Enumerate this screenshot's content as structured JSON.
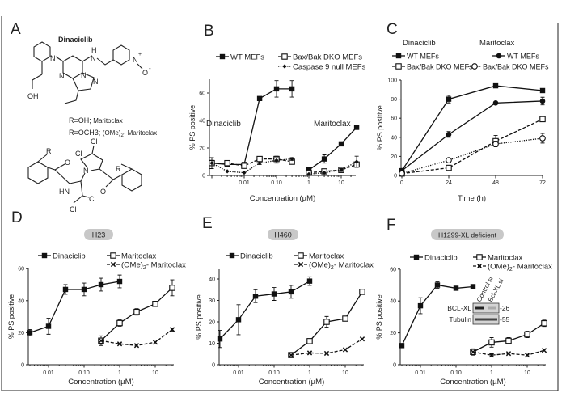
{
  "panel_letters": {
    "a": "A",
    "b": "B",
    "c": "C",
    "d": "D",
    "e": "E",
    "f": "F"
  },
  "panel_a": {
    "compound_name": "Dinaciclib",
    "r_oh": {
      "text": "R=OH;",
      "name": "Maritoclax"
    },
    "r_och3": {
      "text": "R=OCH3;",
      "name_parts": [
        "(OMe)",
        "2",
        "- Maritoclax"
      ]
    },
    "atoms": {
      "n1": "N",
      "oh": "OH",
      "n2": "N",
      "n3": "N",
      "n4": "N",
      "nh_n": "N",
      "nh_h": "H",
      "n_plus": "N",
      "plus": "+",
      "o_minus": "O",
      "minus": "-",
      "cl1": "Cl",
      "cl2": "Cl",
      "cl3": "Cl",
      "cl4": "Cl",
      "n5": "N",
      "hn": "HN",
      "r1": "R",
      "r2": "R",
      "o1": "O",
      "o2": "O"
    }
  },
  "panel_b_labels": {
    "dinaciclib": "Dinaciclib",
    "maritoclax": "Maritoclax"
  },
  "panel_c_groups": {
    "dinaciclib": "Dinaciclib",
    "maritoclax": "Maritoclax"
  },
  "cell_lines": {
    "d": "H23",
    "e": "H460",
    "f": "H1299-XL deficient"
  },
  "western_blot": {
    "lanes": [
      "Control si",
      "Bcl-XL si"
    ],
    "rows": [
      {
        "label": "BCL-XL",
        "mw": "-26"
      },
      {
        "label": "Tubulin",
        "mw": "-55"
      }
    ],
    "bcl_xl_band_intensity": [
      1.0,
      0.1
    ],
    "tubulin_band_intensity": [
      1.0,
      1.0
    ]
  },
  "chart_data": [
    {
      "panel": "B",
      "type": "line",
      "xscale": "log",
      "xlabel": "Concentration (µM)",
      "ylabel": "% PS positive",
      "x_ticks": [
        0.01,
        0.1,
        1,
        10
      ],
      "x_tick_labels": [
        "0.01",
        "0.10",
        "1",
        "10"
      ],
      "y_ticks": [
        0,
        20,
        40,
        60
      ],
      "ylim": [
        0,
        70
      ],
      "legend": "top",
      "series": [
        {
          "name": "WT MEFs",
          "marker": "square-filled",
          "line": "solid",
          "segments": [
            {
              "x": [
                0.001,
                0.003,
                0.01,
                0.03,
                0.1,
                0.3
              ],
              "y": [
                9,
                8,
                8,
                56,
                63,
                63
              ],
              "err": [
                4,
                1,
                1,
                1,
                6,
                6
              ]
            },
            {
              "x": [
                1,
                3,
                10,
                30
              ],
              "y": [
                4,
                12,
                23,
                35
              ],
              "err": [
                0,
                3,
                0,
                0
              ]
            }
          ]
        },
        {
          "name": "Bax/Bak DKO MEFs",
          "marker": "square-open",
          "line": "dashed",
          "segments": [
            {
              "x": [
                0.001,
                0.003,
                0.01,
                0.03,
                0.1,
                0.3
              ],
              "y": [
                9,
                9,
                7,
                12,
                12,
                10
              ],
              "err": [
                2,
                1,
                1,
                1,
                2,
                1
              ]
            },
            {
              "x": [
                1,
                3,
                10,
                30
              ],
              "y": [
                2,
                3,
                4,
                8
              ],
              "err": [
                0,
                1,
                1,
                2
              ]
            }
          ]
        },
        {
          "name": "Caspase 9 null MEFs",
          "marker": "diamond-filled",
          "line": "dotted",
          "segments": [
            {
              "x": [
                0.001,
                0.003,
                0.01,
                0.03,
                0.1,
                0.3
              ],
              "y": [
                9,
                3,
                2,
                9,
                11,
                12
              ],
              "err": [
                2,
                0,
                0,
                1,
                2,
                1
              ]
            },
            {
              "x": [
                1,
                3,
                10,
                30
              ],
              "y": [
                1,
                2,
                4,
                10
              ],
              "err": [
                0,
                0,
                1,
                4
              ]
            }
          ]
        }
      ]
    },
    {
      "panel": "C",
      "type": "line",
      "xscale": "linear",
      "xlabel": "Time (h)",
      "ylabel": "% PS positive",
      "x_ticks": [
        0,
        24,
        48,
        72
      ],
      "x_tick_labels": [
        "0",
        "24",
        "48",
        "72"
      ],
      "y_ticks": [
        0,
        20,
        40,
        60,
        80,
        100
      ],
      "ylim": [
        0,
        100
      ],
      "legend": "top",
      "series": [
        {
          "group": "Dinaciclib",
          "name": "WT MEFs",
          "marker": "square-filled",
          "line": "solid",
          "segments": [
            {
              "x": [
                0,
                24,
                48,
                72
              ],
              "y": [
                5,
                80,
                94,
                89
              ],
              "err": [
                0,
                4,
                2,
                2
              ]
            }
          ]
        },
        {
          "group": "Dinaciclib",
          "name": "Bax/Bak DKO MEFs",
          "marker": "square-open",
          "line": "dashed",
          "segments": [
            {
              "x": [
                0,
                24,
                48,
                72
              ],
              "y": [
                2,
                8,
                36,
                59
              ],
              "err": [
                0,
                2,
                6,
                2
              ]
            }
          ]
        },
        {
          "group": "Maritoclax",
          "name": "WT MEFs",
          "marker": "circle-filled",
          "line": "solid",
          "segments": [
            {
              "x": [
                0,
                24,
                48,
                72
              ],
              "y": [
                5,
                43,
                76,
                78
              ],
              "err": [
                0,
                3,
                1,
                4
              ]
            }
          ]
        },
        {
          "group": "Maritoclax",
          "name": "Bax/Bak DKO MEFs",
          "marker": "circle-open",
          "line": "dotted",
          "segments": [
            {
              "x": [
                0,
                24,
                48,
                72
              ],
              "y": [
                2,
                16,
                33,
                39
              ],
              "err": [
                0,
                2,
                3,
                5
              ]
            }
          ]
        }
      ]
    },
    {
      "panel": "D",
      "type": "line",
      "xscale": "log",
      "xlabel": "Concentration (µM)",
      "ylabel": "% PS positive",
      "x_ticks": [
        0.01,
        0.1,
        1,
        10
      ],
      "x_tick_labels": [
        "0.01",
        "0.10",
        "1",
        "10"
      ],
      "y_ticks": [
        0,
        20,
        40,
        60
      ],
      "ylim": [
        0,
        60
      ],
      "legend": "top",
      "series": [
        {
          "name_parts": [
            "Dinaciclib"
          ],
          "marker": "square-filled",
          "line": "solid",
          "segments": [
            {
              "x": [
                0.003,
                0.01,
                0.03,
                0.1,
                0.3,
                1
              ],
              "y": [
                20,
                24,
                47,
                47,
                50,
                52
              ],
              "err": [
                2,
                5,
                3,
                4,
                4,
                4
              ]
            }
          ]
        },
        {
          "name_parts": [
            "Maritoclax"
          ],
          "marker": "square-open",
          "line": "solid",
          "segments": [
            {
              "x": [
                0.3,
                1,
                3,
                10,
                30
              ],
              "y": [
                15,
                26,
                33,
                38,
                48
              ],
              "err": [
                3,
                2,
                2,
                1,
                5
              ]
            }
          ]
        },
        {
          "name_parts": [
            "(OMe)",
            "2",
            "- Maritoclax"
          ],
          "marker": "x",
          "line": "dashed",
          "segments": [
            {
              "x": [
                0.3,
                1,
                3,
                10,
                30
              ],
              "y": [
                15,
                13,
                12,
                14,
                22
              ],
              "err": [
                0,
                0,
                0,
                0,
                1
              ]
            }
          ]
        }
      ]
    },
    {
      "panel": "E",
      "type": "line",
      "xscale": "log",
      "xlabel": "Concentration (µM)",
      "ylabel": "% PS positive",
      "x_ticks": [
        0.01,
        0.1,
        1,
        10
      ],
      "x_tick_labels": [
        "0.01",
        "0.10",
        "1",
        "10"
      ],
      "y_ticks": [
        0,
        10,
        20,
        30,
        40
      ],
      "ylim": [
        0,
        45
      ],
      "legend": "top",
      "series": [
        {
          "name_parts": [
            "Dinaciclib"
          ],
          "marker": "square-filled",
          "line": "solid",
          "segments": [
            {
              "x": [
                0.003,
                0.01,
                0.03,
                0.1,
                0.3,
                1
              ],
              "y": [
                12,
                21,
                32,
                33,
                34,
                39
              ],
              "err": [
                4,
                7,
                3,
                3,
                3,
                2
              ]
            }
          ]
        },
        {
          "name_parts": [
            "Maritoclax"
          ],
          "marker": "square-open",
          "line": "solid",
          "segments": [
            {
              "x": [
                0.3,
                1,
                3,
                10,
                30
              ],
              "y": [
                4.5,
                11,
                20,
                21.5,
                34
              ],
              "err": [
                0,
                1,
                2.5,
                1,
                1
              ]
            }
          ]
        },
        {
          "name_parts": [
            "(OMe)",
            "2",
            "- Maritoclax"
          ],
          "marker": "x",
          "line": "dashed",
          "segments": [
            {
              "x": [
                0.3,
                1,
                3,
                10,
                30
              ],
              "y": [
                4.5,
                5.5,
                5.3,
                7,
                12
              ],
              "err": [
                0,
                0,
                0,
                0,
                0
              ]
            }
          ]
        }
      ]
    },
    {
      "panel": "F",
      "type": "line",
      "xscale": "log",
      "xlabel": "Concentration (µM)",
      "ylabel": "% PS positive",
      "x_ticks": [
        0.01,
        0.1,
        1,
        10
      ],
      "x_tick_labels": [
        "0.01",
        "0.10",
        "1",
        "10"
      ],
      "y_ticks": [
        0,
        20,
        40,
        60
      ],
      "ylim": [
        0,
        60
      ],
      "legend": "top",
      "series": [
        {
          "name_parts": [
            "Dinaciclib"
          ],
          "marker": "square-filled",
          "line": "solid",
          "segments": [
            {
              "x": [
                0.003,
                0.01,
                0.03,
                0.1,
                0.3
              ],
              "y": [
                12,
                37,
                50,
                48,
                49
              ],
              "err": [
                0,
                5,
                2,
                0,
                0
              ]
            }
          ]
        },
        {
          "name_parts": [
            "Maritoclax"
          ],
          "marker": "square-open",
          "line": "solid",
          "segments": [
            {
              "x": [
                0.3,
                1,
                3,
                10,
                30
              ],
              "y": [
                8,
                14,
                15,
                19,
                26
              ],
              "err": [
                2,
                3,
                2,
                2,
                2
              ]
            }
          ]
        },
        {
          "name_parts": [
            "(OMe)",
            "2",
            "- Maritoclax"
          ],
          "marker": "x",
          "line": "dashed",
          "segments": [
            {
              "x": [
                0.3,
                1,
                3,
                10,
                30
              ],
              "y": [
                8,
                6,
                7,
                6,
                9
              ],
              "err": [
                0,
                1,
                0,
                0,
                0
              ]
            }
          ]
        }
      ]
    }
  ]
}
